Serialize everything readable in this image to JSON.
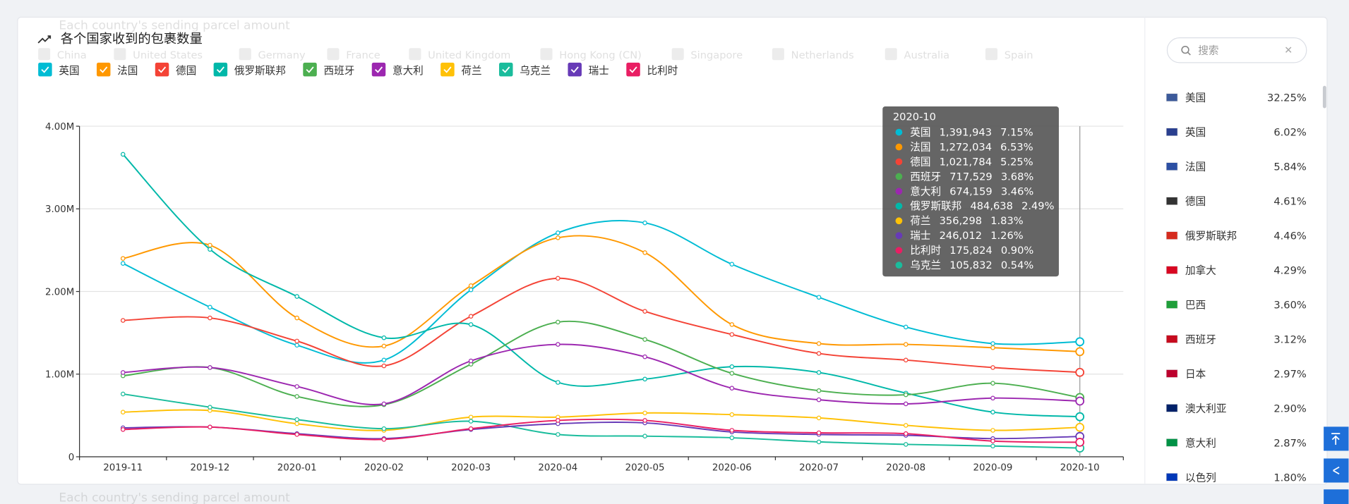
{
  "chart_data": {
    "type": "line",
    "title": "各个国家收到的包裹数量",
    "categories": [
      "2019-11",
      "2019-12",
      "2020-01",
      "2020-02",
      "2020-03",
      "2020-04",
      "2020-05",
      "2020-06",
      "2020-07",
      "2020-08",
      "2020-09",
      "2020-10"
    ],
    "ylim": [
      0,
      4000000
    ],
    "yticks": [
      0,
      {
        "value": 1000000,
        "label": "1.00M"
      },
      {
        "value": 2000000,
        "label": "2.00M"
      },
      {
        "value": 3000000,
        "label": "3.00M"
      },
      {
        "value": 4000000,
        "label": "4.00M"
      }
    ],
    "grid": true,
    "series": [
      {
        "name": "英国",
        "color": "#00bcd4",
        "values": [
          2340000,
          1810000,
          1350000,
          1170000,
          2020000,
          2710000,
          2830000,
          2330000,
          1930000,
          1570000,
          1370000,
          1391943
        ]
      },
      {
        "name": "法国",
        "color": "#ff9800",
        "values": [
          2400000,
          2560000,
          1680000,
          1340000,
          2070000,
          2650000,
          2470000,
          1600000,
          1370000,
          1360000,
          1320000,
          1272034
        ]
      },
      {
        "name": "德国",
        "color": "#f44336",
        "values": [
          1650000,
          1680000,
          1400000,
          1100000,
          1700000,
          2160000,
          1760000,
          1480000,
          1250000,
          1170000,
          1080000,
          1021784
        ]
      },
      {
        "name": "俄罗斯联邦",
        "color": "#00b8a9",
        "values": [
          3660000,
          2510000,
          1940000,
          1440000,
          1600000,
          900000,
          940000,
          1090000,
          1020000,
          770000,
          540000,
          484638
        ]
      },
      {
        "name": "西班牙",
        "color": "#4caf50",
        "values": [
          980000,
          1080000,
          730000,
          630000,
          1120000,
          1630000,
          1420000,
          1010000,
          800000,
          750000,
          890000,
          717529
        ]
      },
      {
        "name": "意大利",
        "color": "#9c27b0",
        "values": [
          1020000,
          1080000,
          850000,
          640000,
          1160000,
          1360000,
          1210000,
          830000,
          690000,
          640000,
          710000,
          674159
        ]
      },
      {
        "name": "荷兰",
        "color": "#ffc107",
        "values": [
          540000,
          560000,
          400000,
          320000,
          480000,
          480000,
          530000,
          510000,
          470000,
          380000,
          320000,
          356298
        ]
      },
      {
        "name": "乌克兰",
        "color": "#1abc9c",
        "values": [
          760000,
          600000,
          450000,
          340000,
          430000,
          270000,
          250000,
          230000,
          180000,
          150000,
          130000,
          105832
        ]
      },
      {
        "name": "瑞士",
        "color": "#673ab7",
        "values": [
          350000,
          360000,
          280000,
          220000,
          330000,
          400000,
          410000,
          300000,
          270000,
          260000,
          220000,
          246012
        ]
      },
      {
        "name": "比利时",
        "color": "#e91e63",
        "values": [
          330000,
          360000,
          270000,
          210000,
          340000,
          440000,
          440000,
          320000,
          290000,
          280000,
          190000,
          175824
        ]
      }
    ],
    "tooltip": {
      "title": "2020-10",
      "rows": [
        {
          "name": "英国",
          "color": "#00bcd4",
          "value": 1391943,
          "label": "1,391,943",
          "share": "7.15%"
        },
        {
          "name": "法国",
          "color": "#ff9800",
          "value": 1272034,
          "label": "1,272,034",
          "share": "6.53%"
        },
        {
          "name": "德国",
          "color": "#f44336",
          "value": 1021784,
          "label": "1,021,784",
          "share": "5.25%"
        },
        {
          "name": "西班牙",
          "color": "#4caf50",
          "value": 717529,
          "label": "717,529",
          "share": "3.68%"
        },
        {
          "name": "意大利",
          "color": "#9c27b0",
          "value": 674159,
          "label": "674,159",
          "share": "3.46%"
        },
        {
          "name": "俄罗斯联邦",
          "color": "#00b8a9",
          "value": 484638,
          "label": "484,638",
          "share": "2.49%"
        },
        {
          "name": "荷兰",
          "color": "#ffc107",
          "value": 356298,
          "label": "356,298",
          "share": "1.83%"
        },
        {
          "name": "瑞士",
          "color": "#673ab7",
          "value": 246012,
          "label": "246,012",
          "share": "1.26%"
        },
        {
          "name": "比利时",
          "color": "#e91e63",
          "value": 175824,
          "label": "175,824",
          "share": "0.90%"
        },
        {
          "name": "乌克兰",
          "color": "#1abc9c",
          "value": 105832,
          "label": "105,832",
          "share": "0.54%"
        }
      ]
    }
  },
  "ghost": {
    "title": "Each country's sending parcel amount",
    "legend": [
      "China",
      "United States",
      "Germany",
      "France",
      "United Kingdom",
      "Hong Kong (CN)",
      "Singapore",
      "Netherlands",
      "Australia",
      "Spain"
    ]
  },
  "sidebar": {
    "search_placeholder": "搜索",
    "items": [
      {
        "name": "美国",
        "share": "32.25%"
      },
      {
        "name": "英国",
        "share": "6.02%"
      },
      {
        "name": "法国",
        "share": "5.84%"
      },
      {
        "name": "德国",
        "share": "4.61%"
      },
      {
        "name": "俄罗斯联邦",
        "share": "4.46%"
      },
      {
        "name": "加拿大",
        "share": "4.29%"
      },
      {
        "name": "巴西",
        "share": "3.60%"
      },
      {
        "name": "西班牙",
        "share": "3.12%"
      },
      {
        "name": "日本",
        "share": "2.97%"
      },
      {
        "name": "澳大利亚",
        "share": "2.90%"
      },
      {
        "name": "意大利",
        "share": "2.87%"
      },
      {
        "name": "以色列",
        "share": "1.80%"
      }
    ]
  }
}
